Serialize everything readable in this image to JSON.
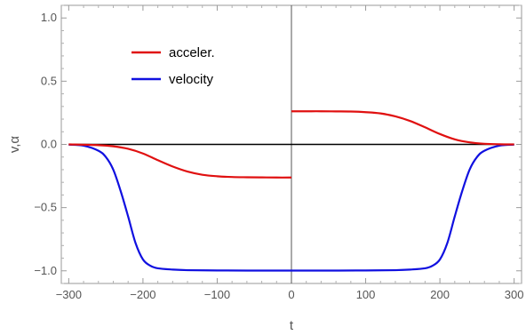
{
  "chart_data": {
    "type": "line",
    "xlabel": "t",
    "ylabel": "v,α",
    "xlim": [
      -310,
      310
    ],
    "ylim": [
      -1.1,
      1.1
    ],
    "xticks": [
      {
        "value": -300,
        "label": "−300"
      },
      {
        "value": -200,
        "label": "−200"
      },
      {
        "value": -100,
        "label": "−100"
      },
      {
        "value": 0,
        "label": "0"
      },
      {
        "value": 100,
        "label": "100"
      },
      {
        "value": 200,
        "label": "200"
      },
      {
        "value": 300,
        "label": "300"
      }
    ],
    "yticks": [
      {
        "value": -1.0,
        "label": "−1.0"
      },
      {
        "value": -0.5,
        "label": "−0.5"
      },
      {
        "value": 0.0,
        "label": "0.0"
      },
      {
        "value": 0.5,
        "label": "0.5"
      },
      {
        "value": 1.0,
        "label": "1.0"
      }
    ],
    "grid": false,
    "legend_position": "top-left",
    "series": [
      {
        "name": "acceler.",
        "color": "#e01010",
        "segments": [
          {
            "x": [
              -300,
              -260,
              -240,
              -220,
              -200,
              -180,
              -160,
              -140,
              -120,
              -100,
              -80,
              -60,
              -40,
              -20,
              0
            ],
            "y": [
              0.0,
              -0.006,
              -0.015,
              -0.035,
              -0.072,
              -0.125,
              -0.175,
              -0.215,
              -0.24,
              -0.252,
              -0.258,
              -0.26,
              -0.261,
              -0.262,
              -0.262
            ]
          },
          {
            "x": [
              0,
              20,
              40,
              60,
              80,
              100,
              120,
              140,
              160,
              180,
              200,
              220,
              240,
              260,
              280,
              300
            ],
            "y": [
              0.262,
              0.262,
              0.262,
              0.261,
              0.26,
              0.255,
              0.245,
              0.222,
              0.185,
              0.135,
              0.082,
              0.04,
              0.016,
              0.005,
              0.001,
              0.0
            ]
          }
        ]
      },
      {
        "name": "velocity",
        "color": "#1010e0",
        "segments": [
          {
            "x": [
              -300,
              -280,
              -260,
              -250,
              -240,
              -230,
              -220,
              -210,
              -200,
              -190,
              -180,
              -160,
              -140,
              -100,
              -60,
              0,
              60,
              100,
              140,
              160,
              180,
              190,
              200,
              210,
              220,
              230,
              240,
              250,
              260,
              280,
              300
            ],
            "y": [
              -0.002,
              -0.01,
              -0.05,
              -0.1,
              -0.2,
              -0.37,
              -0.57,
              -0.78,
              -0.91,
              -0.96,
              -0.98,
              -0.99,
              -0.995,
              -0.997,
              -0.998,
              -0.998,
              -0.998,
              -0.997,
              -0.995,
              -0.99,
              -0.98,
              -0.96,
              -0.91,
              -0.78,
              -0.57,
              -0.37,
              -0.2,
              -0.1,
              -0.05,
              -0.01,
              -0.002
            ]
          }
        ]
      },
      {
        "name": "",
        "color": "#000000",
        "segments": [
          {
            "x": [
              -300,
              300
            ],
            "y": [
              0.0,
              0.0
            ]
          }
        ]
      }
    ]
  }
}
